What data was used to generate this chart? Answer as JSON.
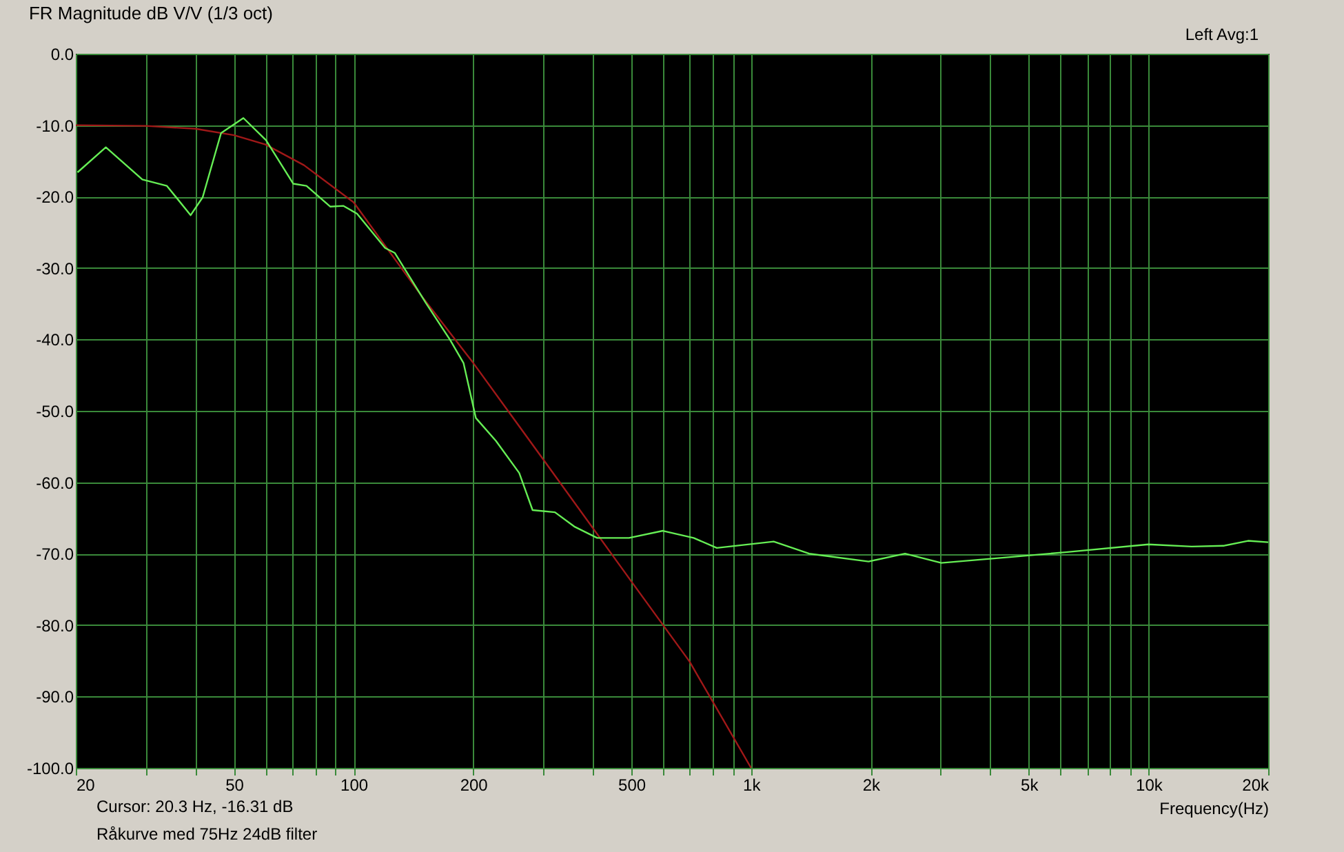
{
  "chart_data": {
    "type": "line",
    "title": "FR Magnitude dB V/V (1/3 oct)",
    "xlabel": "Frequency(Hz)",
    "annotations": [
      "Left Avg:1",
      "Cursor:   20.3 Hz, -16.31 dB",
      "Råkurve med 75Hz 24dB filter"
    ],
    "log": "x",
    "grid": true,
    "marker": "none",
    "line_style": "solid",
    "xlim": [
      20,
      20000
    ],
    "ylim": [
      -100,
      0
    ],
    "xticks": [
      {
        "value": 20,
        "label": "20"
      },
      {
        "value": 30,
        "label": null
      },
      {
        "value": 40,
        "label": null
      },
      {
        "value": 50,
        "label": "50"
      },
      {
        "value": 60,
        "label": null
      },
      {
        "value": 70,
        "label": null
      },
      {
        "value": 80,
        "label": null
      },
      {
        "value": 90,
        "label": null
      },
      {
        "value": 100,
        "label": "100"
      },
      {
        "value": 200,
        "label": "200"
      },
      {
        "value": 300,
        "label": null
      },
      {
        "value": 400,
        "label": null
      },
      {
        "value": 500,
        "label": "500"
      },
      {
        "value": 600,
        "label": null
      },
      {
        "value": 700,
        "label": null
      },
      {
        "value": 800,
        "label": null
      },
      {
        "value": 900,
        "label": null
      },
      {
        "value": 1000,
        "label": "1k"
      },
      {
        "value": 2000,
        "label": "2k"
      },
      {
        "value": 3000,
        "label": null
      },
      {
        "value": 4000,
        "label": null
      },
      {
        "value": 5000,
        "label": "5k"
      },
      {
        "value": 6000,
        "label": null
      },
      {
        "value": 7000,
        "label": null
      },
      {
        "value": 8000,
        "label": null
      },
      {
        "value": 9000,
        "label": null
      },
      {
        "value": 10000,
        "label": "10k"
      },
      {
        "value": 20000,
        "label": "20k"
      }
    ],
    "yticks": [
      {
        "value": 0,
        "label": "0.0"
      },
      {
        "value": -10,
        "label": "-10.0"
      },
      {
        "value": -20,
        "label": "-20.0"
      },
      {
        "value": -30,
        "label": "-30.0"
      },
      {
        "value": -40,
        "label": "-40.0"
      },
      {
        "value": -50,
        "label": "-50.0"
      },
      {
        "value": -60,
        "label": "-60.0"
      },
      {
        "value": -70,
        "label": "-70.0"
      },
      {
        "value": -80,
        "label": "-80.0"
      },
      {
        "value": -90,
        "label": "-90.0"
      },
      {
        "value": -100,
        "label": "-100.0"
      }
    ],
    "series": [
      {
        "color": "#a01818",
        "x": [
          20,
          30,
          40,
          50,
          60,
          75,
          100,
          150,
          200,
          300,
          500,
          700,
          1000
        ],
        "values": [
          -10.0,
          -10.1,
          -10.5,
          -11.4,
          -12.7,
          -15.6,
          -20.8,
          -34.3,
          -43.3,
          -56.8,
          -73.9,
          -85.1,
          -100
        ]
      },
      {
        "color": "#66ee55",
        "x": [
          20.2,
          23.8,
          29.4,
          33.9,
          38.9,
          41.7,
          46.4,
          52.8,
          60.2,
          70.5,
          76.1,
          87.3,
          94.3,
          102,
          120,
          127,
          152,
          175,
          189,
          203,
          228,
          261,
          282,
          321,
          359,
          410,
          493,
          600,
          717,
          820,
          1140,
          1400,
          1975,
          2440,
          3010,
          4440,
          6180,
          9990,
          12840,
          15440,
          17800,
          20000
        ],
        "values": [
          -16.6,
          -13.1,
          -17.6,
          -18.5,
          -22.6,
          -20.1,
          -11.1,
          -9.0,
          -12.1,
          -18.2,
          -18.5,
          -21.4,
          -21.3,
          -22.4,
          -27.2,
          -27.9,
          -34.9,
          -40.1,
          -43.3,
          -51.0,
          -54.2,
          -58.7,
          -63.9,
          -64.2,
          -66.2,
          -67.8,
          -67.8,
          -66.8,
          -67.8,
          -69.2,
          -68.3,
          -70.0,
          -71.1,
          -70.0,
          -71.3,
          -70.5,
          -69.8,
          -68.7,
          -69.0,
          -68.9,
          -68.2,
          -68.4
        ]
      }
    ]
  }
}
